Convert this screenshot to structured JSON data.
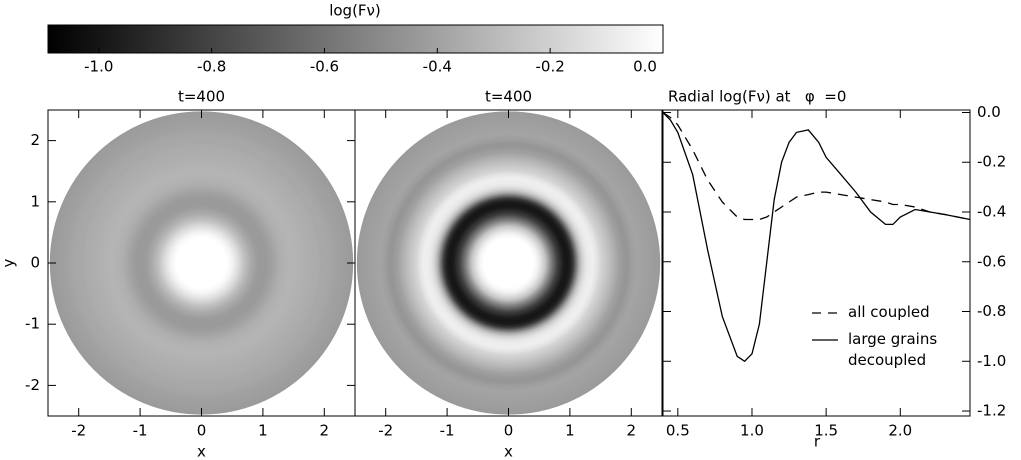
{
  "chart_data": [
    {
      "type": "colorbar",
      "title": "log(Fν)",
      "xlim": [
        -1.09,
        0
      ],
      "xticks": [
        {
          "value": -1,
          "label": "-1.0"
        },
        -0.8,
        -0.6,
        -0.4,
        -0.2,
        {
          "value": 0,
          "label": "0.0"
        }
      ]
    },
    {
      "type": "image",
      "title": "t=400",
      "xlabel": "x",
      "ylabel": "y",
      "xlim": [
        -2.5,
        2.5
      ],
      "ylim": [
        -2.5,
        2.5
      ],
      "xticks": [
        -2,
        -1,
        0,
        1,
        2
      ],
      "yticks": [
        -2,
        -1,
        0,
        1,
        2
      ]
    },
    {
      "type": "image",
      "title": "t=400",
      "xlabel": "x",
      "xlim": [
        -2.5,
        2.5
      ],
      "ylim": [
        -2.5,
        2.5
      ],
      "xticks": [
        -2,
        -1,
        0,
        1,
        2
      ]
    },
    {
      "type": "line",
      "title": "Radial log(Fν) at   φ  =0",
      "xlabel": "r",
      "xlim": [
        0.4,
        2.47
      ],
      "ylim": [
        -1.22,
        0.01
      ],
      "xticks": [
        0.5,
        {
          "value": 1,
          "label": "1.0"
        },
        1.5,
        {
          "value": 2,
          "label": "2.0"
        }
      ],
      "yticks": [
        {
          "value": 0,
          "label": "0.0"
        },
        -0.2,
        -0.4,
        -0.6,
        -0.8,
        {
          "value": -1,
          "label": "-1.0"
        },
        -1.2
      ],
      "x": [
        0.4,
        0.45,
        0.5,
        0.6,
        0.7,
        0.8,
        0.9,
        0.95,
        1.0,
        1.05,
        1.1,
        1.15,
        1.2,
        1.25,
        1.3,
        1.38,
        1.45,
        1.5,
        1.6,
        1.7,
        1.8,
        1.9,
        1.95,
        2.0,
        2.1,
        2.2,
        2.3,
        2.47
      ],
      "series": [
        {
          "name": "all coupled",
          "color": "#000000",
          "style": "dashed",
          "values": [
            0,
            -0.02,
            -0.05,
            -0.15,
            -0.27,
            -0.36,
            -0.42,
            -0.43,
            -0.43,
            -0.43,
            -0.42,
            -0.4,
            -0.38,
            -0.36,
            -0.34,
            -0.33,
            -0.32,
            -0.32,
            -0.33,
            -0.34,
            -0.35,
            -0.36,
            -0.37,
            -0.37,
            -0.38,
            -0.4,
            -0.41,
            -0.43
          ]
        },
        {
          "name": "large grains\ndecoupled",
          "color": "#000000",
          "style": "solid",
          "values": [
            0,
            -0.03,
            -0.08,
            -0.25,
            -0.55,
            -0.82,
            -0.98,
            -1.0,
            -0.97,
            -0.85,
            -0.6,
            -0.35,
            -0.2,
            -0.12,
            -0.08,
            -0.07,
            -0.12,
            -0.18,
            -0.25,
            -0.32,
            -0.4,
            -0.45,
            -0.45,
            -0.42,
            -0.39,
            -0.4,
            -0.41,
            -0.43
          ]
        }
      ]
    }
  ]
}
